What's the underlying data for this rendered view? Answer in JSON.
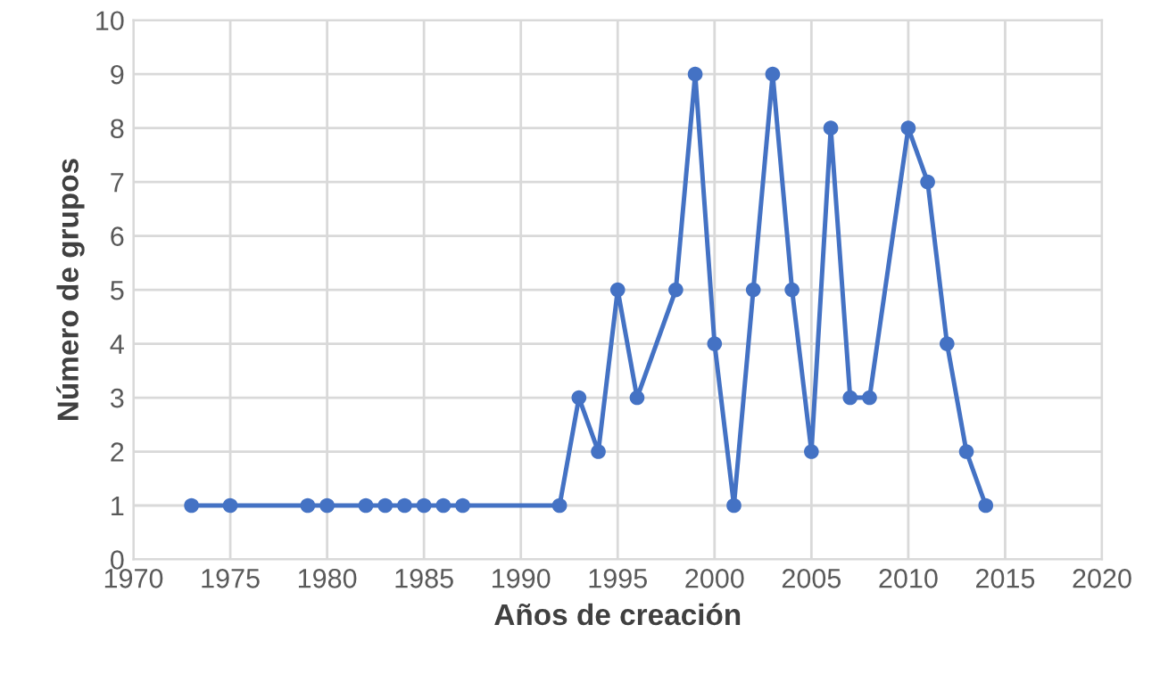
{
  "chart_data": {
    "type": "line",
    "xlabel": "Años de creación",
    "ylabel": "Número de grupos",
    "x": [
      1973,
      1975,
      1979,
      1980,
      1982,
      1983,
      1984,
      1985,
      1986,
      1987,
      1992,
      1993,
      1994,
      1995,
      1996,
      1998,
      1999,
      2000,
      2001,
      2002,
      2003,
      2004,
      2005,
      2006,
      2007,
      2008,
      2010,
      2011,
      2012,
      2013,
      2014
    ],
    "series": [
      {
        "color": "#4472c4",
        "values": [
          1,
          1,
          1,
          1,
          1,
          1,
          1,
          1,
          1,
          1,
          1,
          3,
          2,
          5,
          3,
          5,
          9,
          4,
          1,
          5,
          9,
          5,
          2,
          8,
          3,
          3,
          8,
          7,
          4,
          2,
          1
        ]
      }
    ],
    "xlim": [
      1970,
      2020
    ],
    "xticks": [
      1970,
      1975,
      1980,
      1985,
      1990,
      1995,
      2000,
      2005,
      2010,
      2015,
      2020
    ],
    "ylim": [
      0,
      10
    ],
    "yticks": [
      0,
      1,
      2,
      3,
      4,
      5,
      6,
      7,
      8,
      9,
      10
    ],
    "grid": true,
    "marker": "circle",
    "line_style": "solid"
  }
}
